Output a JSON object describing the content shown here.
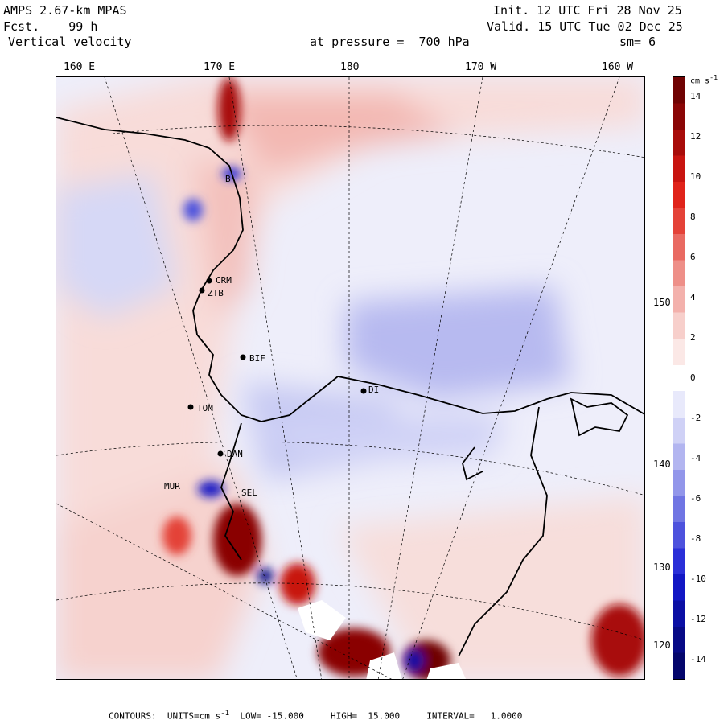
{
  "header": {
    "model": "AMPS 2.67-km MPAS",
    "fcst_label": "Fcst.",
    "fcst_value": "99 h",
    "field": "Vertical velocity",
    "init": "Init. 12 UTC Fri 28 Nov 25",
    "valid": "Valid. 15 UTC Tue 02 Dec 25",
    "pressure": "at pressure =  700 hPa",
    "smoothing": "sm= 6"
  },
  "longitude_labels": [
    "160 E",
    "170 E",
    "180",
    "170 W",
    "160 W"
  ],
  "latitude_labels": [
    "150 W",
    "140 W",
    "130 W",
    "120 W"
  ],
  "stations": [
    "CRM",
    "ZTB",
    "BIF",
    "TOM",
    "DAN",
    "SEL",
    "MUR",
    "B",
    "DI"
  ],
  "colorbar": {
    "units": "cm s",
    "units_exp": "-1",
    "ticks": [
      "14",
      "12",
      "10",
      "8",
      "6",
      "4",
      "2",
      "0",
      "-2",
      "-4",
      "-6",
      "-8",
      "-10",
      "-12",
      "-14"
    ],
    "positive_colors": [
      "#fbe8e6",
      "#f7cfcb",
      "#f3b1ac",
      "#ee8f88",
      "#e96a62",
      "#e44238",
      "#e0231a",
      "#c81410",
      "#a80c0a",
      "#8a0606",
      "#700303"
    ],
    "negative_colors": [
      "#e8e9fb",
      "#cfd1f6",
      "#b2b5f0",
      "#9296ea",
      "#7075e3",
      "#4d52dd",
      "#2a2fd8",
      "#1217c4",
      "#0b0fa4",
      "#070a86",
      "#04066c"
    ]
  },
  "footer": {
    "contours_label": "CONTOURS:",
    "units_label": "UNITS=cm s",
    "units_exp": "-1",
    "low": "LOW= -15.000",
    "high": "HIGH=  15.000",
    "interval": "INTERVAL=   1.0000"
  }
}
